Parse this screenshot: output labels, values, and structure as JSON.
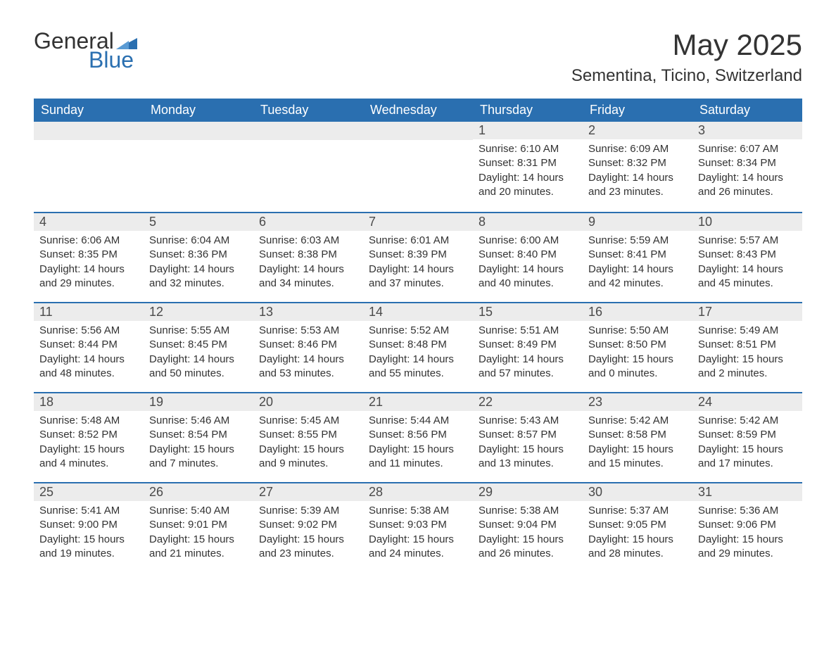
{
  "logo": {
    "word1": "General",
    "word2": "Blue",
    "word1_color": "#333333",
    "word2_color": "#2a6fb0",
    "triangle_color": "#2a6fb0"
  },
  "title": "May 2025",
  "location": "Sementina, Ticino, Switzerland",
  "colors": {
    "header_bg": "#2a6fb0",
    "header_text": "#ffffff",
    "daynum_bg": "#ececec",
    "daynum_border": "#2a6fb0",
    "body_text": "#333333",
    "page_bg": "#ffffff"
  },
  "weekdays": [
    "Sunday",
    "Monday",
    "Tuesday",
    "Wednesday",
    "Thursday",
    "Friday",
    "Saturday"
  ],
  "weeks": [
    [
      null,
      null,
      null,
      null,
      {
        "n": "1",
        "sunrise": "Sunrise: 6:10 AM",
        "sunset": "Sunset: 8:31 PM",
        "daylight": "Daylight: 14 hours and 20 minutes."
      },
      {
        "n": "2",
        "sunrise": "Sunrise: 6:09 AM",
        "sunset": "Sunset: 8:32 PM",
        "daylight": "Daylight: 14 hours and 23 minutes."
      },
      {
        "n": "3",
        "sunrise": "Sunrise: 6:07 AM",
        "sunset": "Sunset: 8:34 PM",
        "daylight": "Daylight: 14 hours and 26 minutes."
      }
    ],
    [
      {
        "n": "4",
        "sunrise": "Sunrise: 6:06 AM",
        "sunset": "Sunset: 8:35 PM",
        "daylight": "Daylight: 14 hours and 29 minutes."
      },
      {
        "n": "5",
        "sunrise": "Sunrise: 6:04 AM",
        "sunset": "Sunset: 8:36 PM",
        "daylight": "Daylight: 14 hours and 32 minutes."
      },
      {
        "n": "6",
        "sunrise": "Sunrise: 6:03 AM",
        "sunset": "Sunset: 8:38 PM",
        "daylight": "Daylight: 14 hours and 34 minutes."
      },
      {
        "n": "7",
        "sunrise": "Sunrise: 6:01 AM",
        "sunset": "Sunset: 8:39 PM",
        "daylight": "Daylight: 14 hours and 37 minutes."
      },
      {
        "n": "8",
        "sunrise": "Sunrise: 6:00 AM",
        "sunset": "Sunset: 8:40 PM",
        "daylight": "Daylight: 14 hours and 40 minutes."
      },
      {
        "n": "9",
        "sunrise": "Sunrise: 5:59 AM",
        "sunset": "Sunset: 8:41 PM",
        "daylight": "Daylight: 14 hours and 42 minutes."
      },
      {
        "n": "10",
        "sunrise": "Sunrise: 5:57 AM",
        "sunset": "Sunset: 8:43 PM",
        "daylight": "Daylight: 14 hours and 45 minutes."
      }
    ],
    [
      {
        "n": "11",
        "sunrise": "Sunrise: 5:56 AM",
        "sunset": "Sunset: 8:44 PM",
        "daylight": "Daylight: 14 hours and 48 minutes."
      },
      {
        "n": "12",
        "sunrise": "Sunrise: 5:55 AM",
        "sunset": "Sunset: 8:45 PM",
        "daylight": "Daylight: 14 hours and 50 minutes."
      },
      {
        "n": "13",
        "sunrise": "Sunrise: 5:53 AM",
        "sunset": "Sunset: 8:46 PM",
        "daylight": "Daylight: 14 hours and 53 minutes."
      },
      {
        "n": "14",
        "sunrise": "Sunrise: 5:52 AM",
        "sunset": "Sunset: 8:48 PM",
        "daylight": "Daylight: 14 hours and 55 minutes."
      },
      {
        "n": "15",
        "sunrise": "Sunrise: 5:51 AM",
        "sunset": "Sunset: 8:49 PM",
        "daylight": "Daylight: 14 hours and 57 minutes."
      },
      {
        "n": "16",
        "sunrise": "Sunrise: 5:50 AM",
        "sunset": "Sunset: 8:50 PM",
        "daylight": "Daylight: 15 hours and 0 minutes."
      },
      {
        "n": "17",
        "sunrise": "Sunrise: 5:49 AM",
        "sunset": "Sunset: 8:51 PM",
        "daylight": "Daylight: 15 hours and 2 minutes."
      }
    ],
    [
      {
        "n": "18",
        "sunrise": "Sunrise: 5:48 AM",
        "sunset": "Sunset: 8:52 PM",
        "daylight": "Daylight: 15 hours and 4 minutes."
      },
      {
        "n": "19",
        "sunrise": "Sunrise: 5:46 AM",
        "sunset": "Sunset: 8:54 PM",
        "daylight": "Daylight: 15 hours and 7 minutes."
      },
      {
        "n": "20",
        "sunrise": "Sunrise: 5:45 AM",
        "sunset": "Sunset: 8:55 PM",
        "daylight": "Daylight: 15 hours and 9 minutes."
      },
      {
        "n": "21",
        "sunrise": "Sunrise: 5:44 AM",
        "sunset": "Sunset: 8:56 PM",
        "daylight": "Daylight: 15 hours and 11 minutes."
      },
      {
        "n": "22",
        "sunrise": "Sunrise: 5:43 AM",
        "sunset": "Sunset: 8:57 PM",
        "daylight": "Daylight: 15 hours and 13 minutes."
      },
      {
        "n": "23",
        "sunrise": "Sunrise: 5:42 AM",
        "sunset": "Sunset: 8:58 PM",
        "daylight": "Daylight: 15 hours and 15 minutes."
      },
      {
        "n": "24",
        "sunrise": "Sunrise: 5:42 AM",
        "sunset": "Sunset: 8:59 PM",
        "daylight": "Daylight: 15 hours and 17 minutes."
      }
    ],
    [
      {
        "n": "25",
        "sunrise": "Sunrise: 5:41 AM",
        "sunset": "Sunset: 9:00 PM",
        "daylight": "Daylight: 15 hours and 19 minutes."
      },
      {
        "n": "26",
        "sunrise": "Sunrise: 5:40 AM",
        "sunset": "Sunset: 9:01 PM",
        "daylight": "Daylight: 15 hours and 21 minutes."
      },
      {
        "n": "27",
        "sunrise": "Sunrise: 5:39 AM",
        "sunset": "Sunset: 9:02 PM",
        "daylight": "Daylight: 15 hours and 23 minutes."
      },
      {
        "n": "28",
        "sunrise": "Sunrise: 5:38 AM",
        "sunset": "Sunset: 9:03 PM",
        "daylight": "Daylight: 15 hours and 24 minutes."
      },
      {
        "n": "29",
        "sunrise": "Sunrise: 5:38 AM",
        "sunset": "Sunset: 9:04 PM",
        "daylight": "Daylight: 15 hours and 26 minutes."
      },
      {
        "n": "30",
        "sunrise": "Sunrise: 5:37 AM",
        "sunset": "Sunset: 9:05 PM",
        "daylight": "Daylight: 15 hours and 28 minutes."
      },
      {
        "n": "31",
        "sunrise": "Sunrise: 5:36 AM",
        "sunset": "Sunset: 9:06 PM",
        "daylight": "Daylight: 15 hours and 29 minutes."
      }
    ]
  ]
}
